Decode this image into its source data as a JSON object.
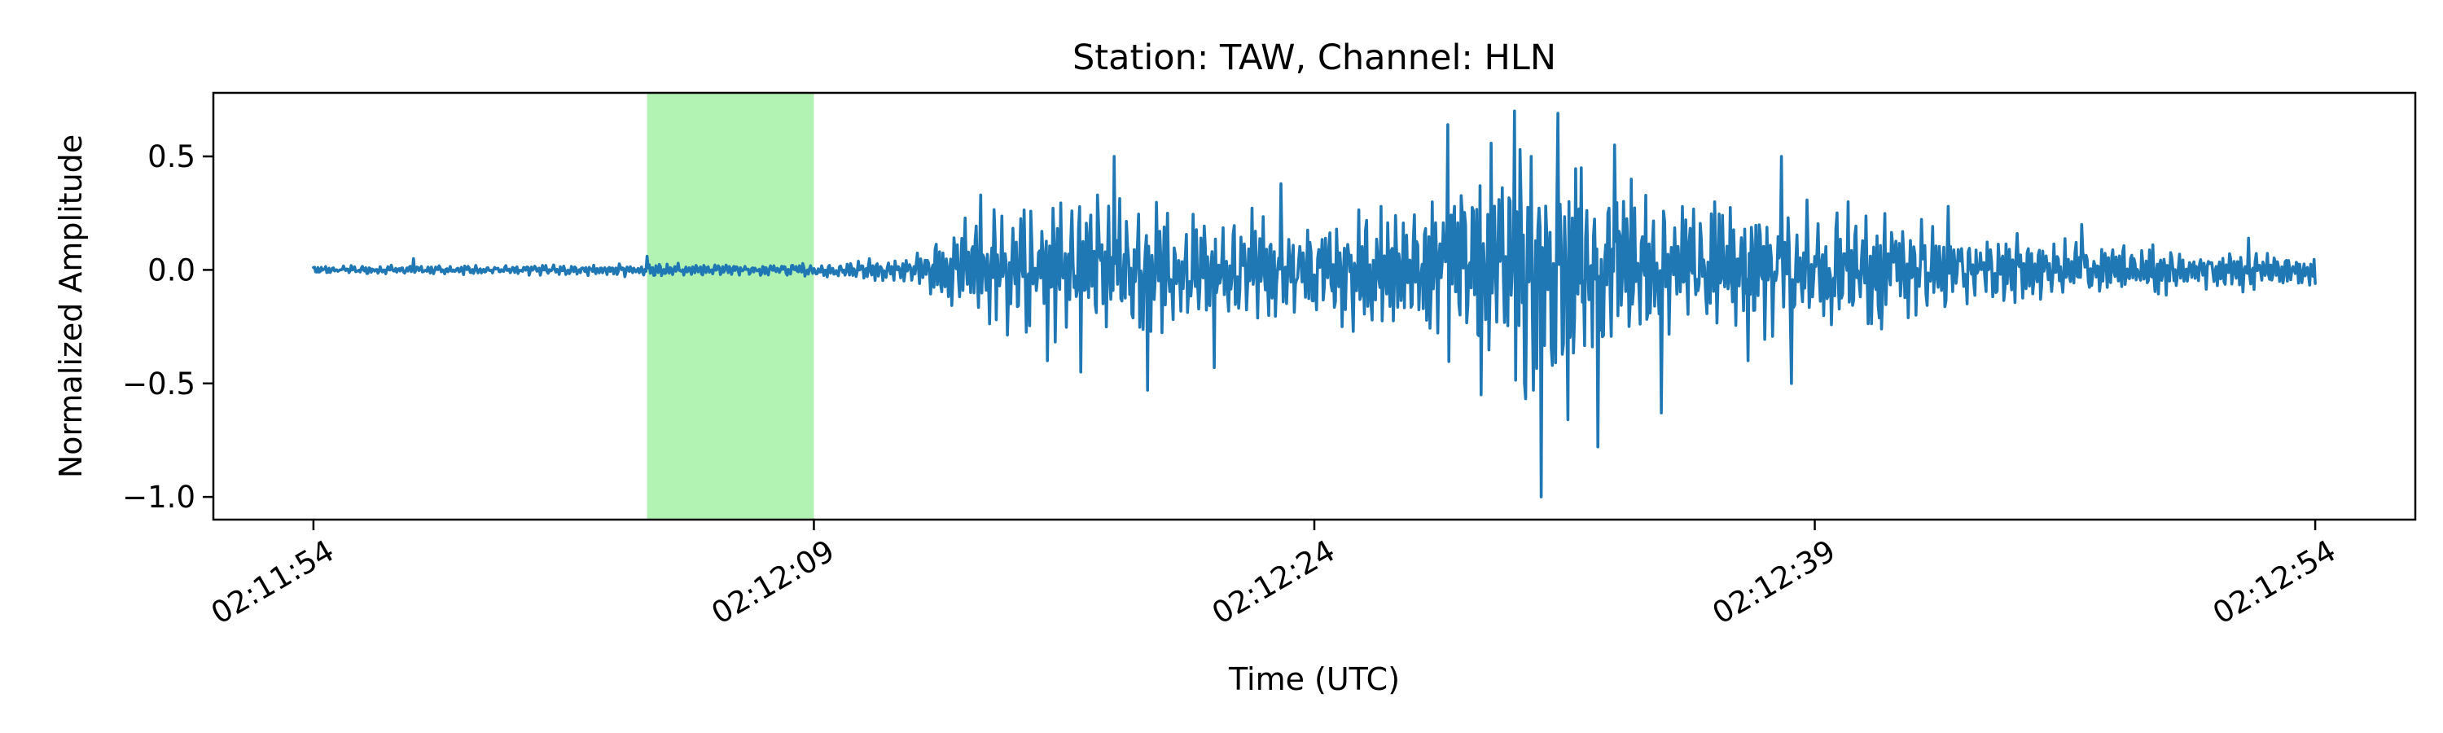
{
  "chart_data": {
    "type": "line",
    "title": "Station: TAW, Channel: HLN",
    "xlabel": "Time (UTC)",
    "ylabel": "Normalized Amplitude",
    "x_start": "02:11:54",
    "x_end": "02:12:54",
    "xlim": [
      "02:11:51",
      "02:12:57"
    ],
    "ylim": [
      -1.1,
      0.78
    ],
    "x_ticks": [
      "02:11:54",
      "02:12:09",
      "02:12:24",
      "02:12:39",
      "02:12:54"
    ],
    "y_ticks": [
      0.5,
      0.0,
      -0.5,
      -1.0
    ],
    "y_tick_labels": [
      "0.5",
      "0.0",
      "−0.5",
      "−1.0"
    ],
    "grid": false,
    "highlight_window": {
      "from": "02:12:04",
      "to": "02:12:09",
      "color": "#b2f2b2"
    },
    "series": [
      {
        "color": "#1f77b4",
        "envelope": [
          [
            "02:11:54",
            0.02
          ],
          [
            "02:12:00",
            0.025
          ],
          [
            "02:12:03",
            0.03
          ],
          [
            "02:12:05",
            0.03
          ],
          [
            "02:12:08",
            0.03
          ],
          [
            "02:12:10",
            0.04
          ],
          [
            "02:12:12",
            0.07
          ],
          [
            "02:12:13",
            0.18
          ],
          [
            "02:12:14",
            0.32
          ],
          [
            "02:12:16",
            0.35
          ],
          [
            "02:12:17",
            0.4
          ],
          [
            "02:12:18",
            0.42
          ],
          [
            "02:12:20",
            0.3
          ],
          [
            "02:12:22",
            0.28
          ],
          [
            "02:12:24",
            0.25
          ],
          [
            "02:12:26",
            0.3
          ],
          [
            "02:12:28",
            0.4
          ],
          [
            "02:12:29",
            0.58
          ],
          [
            "02:12:30",
            0.66
          ],
          [
            "02:12:31",
            0.64
          ],
          [
            "02:12:32",
            0.5
          ],
          [
            "02:12:33",
            0.45
          ],
          [
            "02:12:34",
            0.35
          ],
          [
            "02:12:36",
            0.3
          ],
          [
            "02:12:38",
            0.38
          ],
          [
            "02:12:40",
            0.3
          ],
          [
            "02:12:43",
            0.2
          ],
          [
            "02:12:46",
            0.15
          ],
          [
            "02:12:49",
            0.12
          ],
          [
            "02:12:52",
            0.1
          ],
          [
            "02:12:54",
            0.07
          ]
        ],
        "peaks": [
          [
            "02:11:57",
            0.05
          ],
          [
            "02:12:04",
            0.06
          ],
          [
            "02:12:14",
            0.33
          ],
          [
            "02:12:16",
            -0.4
          ],
          [
            "02:12:17",
            -0.45
          ],
          [
            "02:12:18",
            0.5
          ],
          [
            "02:12:19",
            -0.53
          ],
          [
            "02:12:21",
            -0.43
          ],
          [
            "02:12:23",
            0.38
          ],
          [
            "02:12:26",
            0.28
          ],
          [
            "02:12:28",
            0.64
          ],
          [
            "02:12:29",
            -0.55
          ],
          [
            "02:12:30",
            0.7
          ],
          [
            "02:12:30.3",
            -0.5
          ],
          [
            "02:12:30.5",
            0.5
          ],
          [
            "02:12:30.8",
            -1.0
          ],
          [
            "02:12:31.3",
            0.69
          ],
          [
            "02:12:31.6",
            -0.66
          ],
          [
            "02:12:32",
            0.45
          ],
          [
            "02:12:32.5",
            -0.78
          ],
          [
            "02:12:33",
            0.55
          ],
          [
            "02:12:33.5",
            0.4
          ],
          [
            "02:12:34.4",
            -0.63
          ],
          [
            "02:12:36",
            0.3
          ],
          [
            "02:12:37",
            -0.4
          ],
          [
            "02:12:38",
            0.5
          ],
          [
            "02:12:38.3",
            -0.5
          ],
          [
            "02:12:40",
            0.3
          ],
          [
            "02:12:41",
            -0.26
          ],
          [
            "02:12:43",
            0.28
          ],
          [
            "02:12:47",
            0.2
          ],
          [
            "02:12:52",
            0.14
          ]
        ]
      }
    ]
  }
}
